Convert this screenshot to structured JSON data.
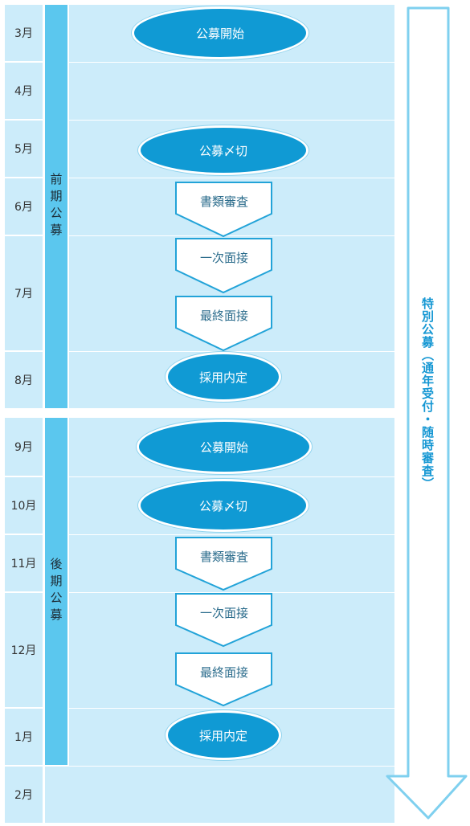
{
  "months": [
    "3月",
    "4月",
    "5月",
    "6月",
    "7月",
    "8月",
    "9月",
    "10月",
    "11月",
    "12月",
    "1月",
    "2月"
  ],
  "phases": {
    "first": "前期公募",
    "second": "後期公募"
  },
  "steps": {
    "open": "公募開始",
    "close": "公募〆切",
    "screening": "書類審査",
    "interview1": "一次面接",
    "interview_final": "最終面接",
    "offer": "採用内定"
  },
  "special": "特別公募（通年受付・随時審査）",
  "colors": {
    "cell": "#ccecfa",
    "phase_bar": "#5bc7ee",
    "ellipse": "#109ad4",
    "arrow_border": "#7fd0ef"
  }
}
